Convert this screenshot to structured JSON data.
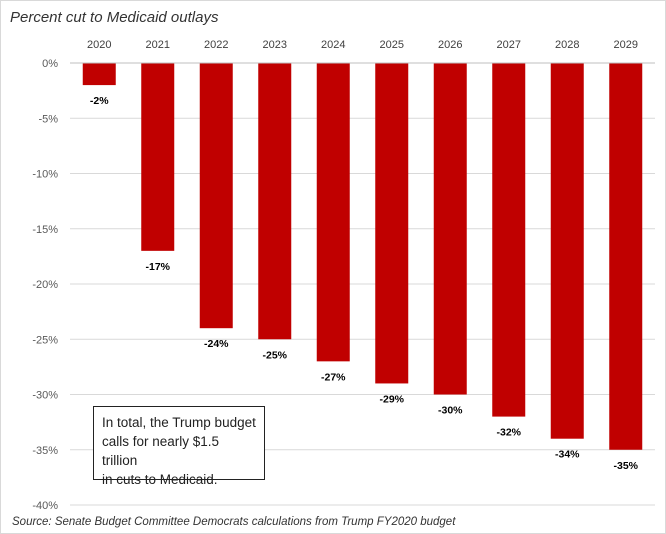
{
  "chart_data": {
    "type": "bar",
    "title": "Percent cut to Medicaid outlays",
    "categories": [
      "2020",
      "2021",
      "2022",
      "2023",
      "2024",
      "2025",
      "2026",
      "2027",
      "2028",
      "2029"
    ],
    "values": [
      -2,
      -17,
      -24,
      -25,
      -27,
      -29,
      -30,
      -32,
      -34,
      -35
    ],
    "data_labels": [
      "-2%",
      "-17%",
      "-24%",
      "-25%",
      "-27%",
      "-29%",
      "-30%",
      "-32%",
      "-34%",
      "-35%"
    ],
    "ylim": [
      -40,
      0
    ],
    "yticks": [
      0,
      -5,
      -10,
      -15,
      -20,
      -25,
      -30,
      -35,
      -40
    ],
    "ytick_labels": [
      "0%",
      "-5%",
      "-10%",
      "-15%",
      "-20%",
      "-25%",
      "-30%",
      "-35%",
      "-40%"
    ],
    "xaxis_position": "top",
    "grid": true,
    "bar_color": "#c00000",
    "annotation": {
      "line1": "In total, the Trump budget",
      "line2": "calls for nearly $1.5 trillion",
      "line3": "in cuts to Medicaid."
    },
    "source": "Source: Senate Budget Committee  Democrats  calculations from Trump FY2020 budget"
  }
}
